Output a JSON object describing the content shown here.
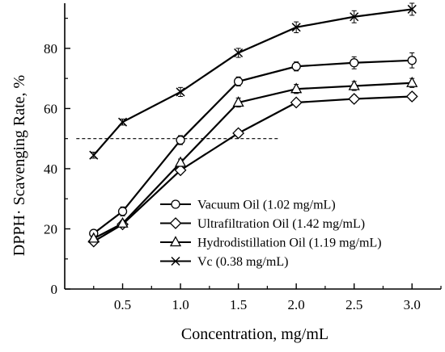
{
  "chart_data": {
    "type": "line",
    "xlabel": "Concentration, mg/mL",
    "ylabel": "DPPH· Scavenging Rate, %",
    "xlim": [
      0,
      3.25
    ],
    "ylim": [
      0,
      95
    ],
    "x_ticks": [
      0.5,
      1.0,
      1.5,
      2.0,
      2.5,
      3.0
    ],
    "x_tick_labels": [
      "0.5",
      "1.0",
      "1.5",
      "2.0",
      "2.5",
      "3.0"
    ],
    "y_ticks": [
      0,
      20,
      40,
      60,
      80
    ],
    "y_tick_labels": [
      "0",
      "20",
      "40",
      "60",
      "80"
    ],
    "x": [
      0.25,
      0.5,
      1.0,
      1.5,
      2.0,
      2.5,
      3.0
    ],
    "series": [
      {
        "name": "Vacuum Oil",
        "legend_label": "Vacuum Oil  (1.02 mg/mL)",
        "marker": "circle",
        "values": [
          18.5,
          25.8,
          49.5,
          69.0,
          74.0,
          75.2,
          76.0
        ],
        "errors": [
          1.0,
          1.5,
          1.5,
          1.5,
          1.5,
          2.0,
          2.5
        ]
      },
      {
        "name": "Ultrafiltration Oil",
        "legend_label": "Ultrafiltration Oil  (1.42 mg/mL)",
        "marker": "diamond",
        "values": [
          15.8,
          21.5,
          39.5,
          51.8,
          62.0,
          63.2,
          64.0
        ],
        "errors": [
          0.8,
          1.0,
          1.0,
          1.2,
          1.0,
          1.2,
          1.2
        ]
      },
      {
        "name": "Hydrodistillation Oil",
        "legend_label": "Hydrodistillation Oil  (1.19 mg/mL)",
        "marker": "triangle",
        "values": [
          16.8,
          21.8,
          42.0,
          62.0,
          66.5,
          67.5,
          68.5
        ],
        "errors": [
          0.8,
          1.0,
          1.2,
          1.5,
          1.5,
          1.5,
          1.5
        ]
      },
      {
        "name": "Vc",
        "legend_label": "Vc  (0.38 mg/mL)",
        "marker": "x",
        "values": [
          44.5,
          55.5,
          65.5,
          78.5,
          87.0,
          90.5,
          93.0
        ],
        "errors": [
          1.0,
          1.0,
          1.5,
          1.5,
          1.8,
          2.0,
          2.0
        ]
      }
    ],
    "reference_line": {
      "y": 50,
      "x_range": [
        0.1,
        1.85
      ],
      "style": "dashed"
    },
    "legend_position": "center-right",
    "grid": false,
    "colors": {
      "line": "#000000",
      "marker_fill": "#ffffff"
    }
  }
}
